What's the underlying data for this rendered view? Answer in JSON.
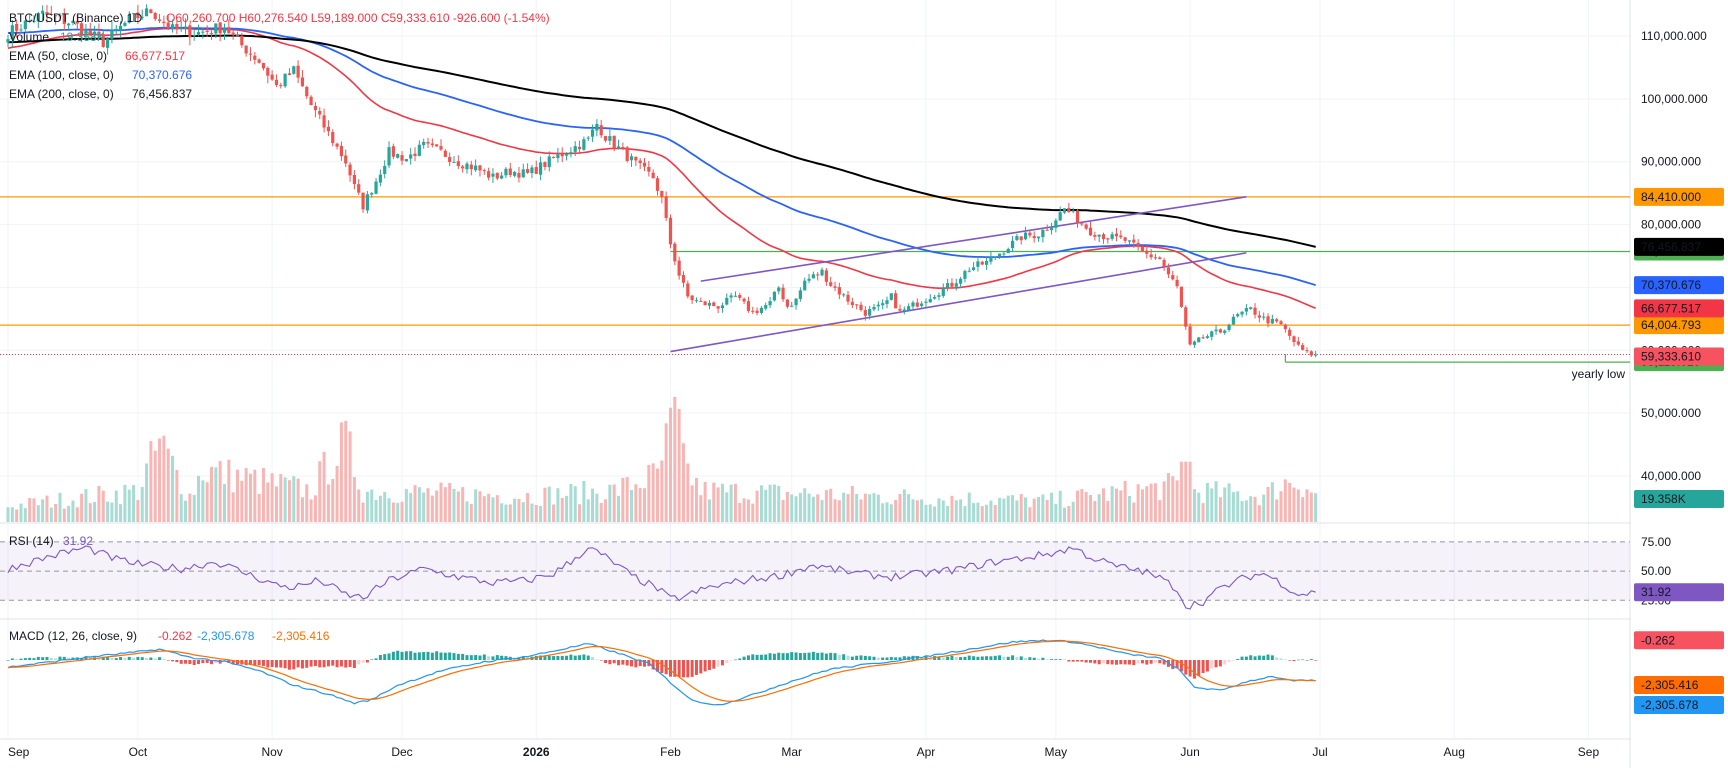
{
  "header": {
    "symbol_line": "BTC/USDT (Binance) 1D",
    "ohlc": "O60,260.700 H60,276.540 L59,189.000 C59,333.610 -926.600 (-1.54%)",
    "volume_label": "Volume",
    "volume_value": "19.358K",
    "ema50_label": "EMA (50, close, 0)",
    "ema50_value": "66,677.517",
    "ema100_label": "EMA (100, close, 0)",
    "ema100_value": "70,370.676",
    "ema200_label": "EMA (200, close, 0)",
    "ema200_value": "76,456.837"
  },
  "rsi_header": {
    "label": "RSI (14)",
    "value": "31.92"
  },
  "macd_header": {
    "label": "MACD (12, 26, close, 9)",
    "hist": "-0.262",
    "macd": "-2,305.678",
    "signal": "-2,305.416"
  },
  "colors": {
    "up": "#26a69a",
    "down": "#ef5350",
    "ema50": "#f23645",
    "ema100": "#2962ff",
    "ema200": "#000000",
    "orange": "#ff9800",
    "green": "#4caf50",
    "purple": "#7e57c2",
    "macd": "#2196f3",
    "signal": "#ff6d00"
  },
  "chart_data": {
    "type": "candlestick",
    "interval": "1D",
    "x_ticks": [
      "Sep",
      "Oct",
      "Nov",
      "Dec",
      "2026",
      "Feb",
      "Mar",
      "Apr",
      "May",
      "Jun",
      "Jul",
      "Aug",
      "Sep"
    ],
    "y_ticks": [
      "110,000.000",
      "100,000.000",
      "90,000.000",
      "80,000.000",
      "70,000.000",
      "60,000.000",
      "50,000.000",
      "40,000.000"
    ],
    "y_tick_values": [
      110000,
      100000,
      90000,
      80000,
      70000,
      60000,
      50000,
      40000
    ],
    "ylim": [
      35000,
      118000
    ],
    "x_month_starts": {
      "Sep": 0,
      "Oct": 30,
      "Nov": 61,
      "Dec": 91,
      "2026": 122,
      "Feb": 153,
      "Mar": 181,
      "Apr": 212,
      "May": 242,
      "Jun": 273,
      "Jul": 303,
      "Aug": 334,
      "Sep2": 365
    },
    "price_keyframes": [
      [
        0,
        110500
      ],
      [
        8,
        113500
      ],
      [
        15,
        112000
      ],
      [
        22,
        109000
      ],
      [
        28,
        112500
      ],
      [
        33,
        114000
      ],
      [
        38,
        111000
      ],
      [
        44,
        110500
      ],
      [
        50,
        111500
      ],
      [
        54,
        108500
      ],
      [
        58,
        106000
      ],
      [
        62,
        102000
      ],
      [
        66,
        104500
      ],
      [
        70,
        99000
      ],
      [
        74,
        94500
      ],
      [
        78,
        90000
      ],
      [
        80,
        86000
      ],
      [
        82,
        83000
      ],
      [
        85,
        87000
      ],
      [
        88,
        91500
      ],
      [
        92,
        90500
      ],
      [
        96,
        92500
      ],
      [
        100,
        91500
      ],
      [
        104,
        90000
      ],
      [
        108,
        89000
      ],
      [
        112,
        87500
      ],
      [
        116,
        88500
      ],
      [
        120,
        88000
      ],
      [
        126,
        90500
      ],
      [
        130,
        92000
      ],
      [
        134,
        93500
      ],
      [
        136,
        96000
      ],
      [
        138,
        94000
      ],
      [
        142,
        91500
      ],
      [
        146,
        89000
      ],
      [
        149,
        87500
      ],
      [
        151,
        84000
      ],
      [
        153,
        77000
      ],
      [
        155,
        72000
      ],
      [
        157,
        68500
      ],
      [
        160,
        67500
      ],
      [
        164,
        67000
      ],
      [
        168,
        68500
      ],
      [
        172,
        66000
      ],
      [
        176,
        67500
      ],
      [
        178,
        70000
      ],
      [
        180,
        67000
      ],
      [
        182,
        68000
      ],
      [
        184,
        71000
      ],
      [
        188,
        72500
      ],
      [
        190,
        70500
      ],
      [
        194,
        68000
      ],
      [
        198,
        66000
      ],
      [
        202,
        67000
      ],
      [
        204,
        68500
      ],
      [
        206,
        66000
      ],
      [
        210,
        67500
      ],
      [
        214,
        69000
      ],
      [
        218,
        70500
      ],
      [
        222,
        73000
      ],
      [
        226,
        74000
      ],
      [
        230,
        76000
      ],
      [
        234,
        78000
      ],
      [
        238,
        78500
      ],
      [
        240,
        79500
      ],
      [
        242,
        81000
      ],
      [
        244,
        82500
      ],
      [
        246,
        81500
      ],
      [
        250,
        79000
      ],
      [
        254,
        78000
      ],
      [
        258,
        77500
      ],
      [
        262,
        75500
      ],
      [
        266,
        74500
      ],
      [
        268,
        72000
      ],
      [
        270,
        70000
      ],
      [
        272,
        63500
      ],
      [
        273,
        60500
      ],
      [
        276,
        62000
      ],
      [
        280,
        63000
      ],
      [
        284,
        65500
      ],
      [
        287,
        66500
      ],
      [
        290,
        65000
      ],
      [
        294,
        64000
      ],
      [
        298,
        60500
      ],
      [
        300,
        59500
      ],
      [
        302,
        59333.61
      ]
    ],
    "volume_keyframes": [
      [
        0,
        6
      ],
      [
        30,
        12
      ],
      [
        35,
        30
      ],
      [
        42,
        10
      ],
      [
        45,
        20
      ],
      [
        70,
        12
      ],
      [
        75,
        25
      ],
      [
        78,
        30
      ],
      [
        82,
        12
      ],
      [
        120,
        10
      ],
      [
        140,
        12
      ],
      [
        150,
        18
      ],
      [
        153,
        35
      ],
      [
        154,
        50
      ],
      [
        156,
        22
      ],
      [
        160,
        12
      ],
      [
        200,
        10
      ],
      [
        240,
        8
      ],
      [
        270,
        14
      ],
      [
        272,
        30
      ],
      [
        274,
        12
      ],
      [
        290,
        10
      ],
      [
        296,
        16
      ],
      [
        300,
        14
      ],
      [
        302,
        10
      ]
    ],
    "volume_label": "19.358K",
    "rsi": {
      "label": "RSI (14)",
      "last": 31.92,
      "levels": [
        75.0,
        50.0,
        25.0
      ],
      "tick_labels": [
        "75.00",
        "50.00",
        "25.00"
      ],
      "current_label": "31.92"
    },
    "rsi_keyframes": [
      [
        0,
        52
      ],
      [
        10,
        63
      ],
      [
        18,
        70
      ],
      [
        25,
        60
      ],
      [
        30,
        56
      ],
      [
        40,
        52
      ],
      [
        48,
        58
      ],
      [
        55,
        48
      ],
      [
        62,
        38
      ],
      [
        66,
        36
      ],
      [
        72,
        42
      ],
      [
        78,
        30
      ],
      [
        82,
        27
      ],
      [
        88,
        42
      ],
      [
        96,
        52
      ],
      [
        104,
        45
      ],
      [
        112,
        40
      ],
      [
        120,
        42
      ],
      [
        126,
        48
      ],
      [
        130,
        58
      ],
      [
        134,
        70
      ],
      [
        138,
        62
      ],
      [
        144,
        46
      ],
      [
        150,
        35
      ],
      [
        153,
        26
      ],
      [
        156,
        28
      ],
      [
        162,
        36
      ],
      [
        170,
        42
      ],
      [
        178,
        46
      ],
      [
        186,
        55
      ],
      [
        190,
        52
      ],
      [
        196,
        48
      ],
      [
        204,
        45
      ],
      [
        212,
        48
      ],
      [
        220,
        52
      ],
      [
        228,
        58
      ],
      [
        236,
        62
      ],
      [
        242,
        66
      ],
      [
        246,
        70
      ],
      [
        250,
        62
      ],
      [
        256,
        54
      ],
      [
        262,
        50
      ],
      [
        266,
        44
      ],
      [
        270,
        35
      ],
      [
        272,
        20
      ],
      [
        276,
        24
      ],
      [
        280,
        35
      ],
      [
        286,
        45
      ],
      [
        290,
        48
      ],
      [
        294,
        40
      ],
      [
        298,
        30
      ],
      [
        302,
        31.92
      ]
    ],
    "macd": {
      "label": "MACD (12, 26, close, 9)",
      "hist_last": -0.262,
      "macd_last": -2305.678,
      "signal_last": -2305.416,
      "hist_label": "-0.262",
      "macd_label": "-2,305.678",
      "signal_label": "-2,305.416"
    },
    "macd_keyframes": [
      [
        0,
        -800
      ],
      [
        10,
        -200
      ],
      [
        20,
        400
      ],
      [
        30,
        900
      ],
      [
        35,
        1200
      ],
      [
        42,
        300
      ],
      [
        50,
        -200
      ],
      [
        58,
        -1200
      ],
      [
        66,
        -2800
      ],
      [
        74,
        -3800
      ],
      [
        80,
        -4800
      ],
      [
        84,
        -4400
      ],
      [
        90,
        -2800
      ],
      [
        100,
        -1200
      ],
      [
        110,
        -200
      ],
      [
        120,
        400
      ],
      [
        128,
        1200
      ],
      [
        134,
        1800
      ],
      [
        140,
        900
      ],
      [
        148,
        -400
      ],
      [
        153,
        -2500
      ],
      [
        158,
        -4500
      ],
      [
        164,
        -5000
      ],
      [
        170,
        -4200
      ],
      [
        180,
        -2500
      ],
      [
        190,
        -1000
      ],
      [
        200,
        -400
      ],
      [
        212,
        400
      ],
      [
        222,
        1200
      ],
      [
        232,
        2000
      ],
      [
        240,
        2200
      ],
      [
        246,
        2000
      ],
      [
        252,
        1400
      ],
      [
        258,
        700
      ],
      [
        266,
        200
      ],
      [
        270,
        -900
      ],
      [
        274,
        -3000
      ],
      [
        280,
        -3400
      ],
      [
        286,
        -2400
      ],
      [
        292,
        -1800
      ],
      [
        296,
        -2300
      ],
      [
        302,
        -2305.678
      ]
    ],
    "levels": [
      {
        "name": "resistance",
        "value": 84410.0,
        "label": "84,410.000",
        "color": "#ff9800"
      },
      {
        "name": "support",
        "value": 64004.793,
        "label": "64,004.793",
        "color": "#ff9800"
      },
      {
        "name": "green-level",
        "value": 75719.9,
        "label": "75,719.900",
        "color": "#4caf50"
      },
      {
        "name": "yearly-low",
        "value": 58115.01,
        "label": "58,115.010",
        "color": "#4caf50",
        "text": "yearly low"
      }
    ],
    "price_labels": [
      {
        "name": "ema200",
        "value": 76456.837,
        "label": "76,456.837",
        "bg": "#000000"
      },
      {
        "name": "ema100",
        "value": 70370.676,
        "label": "70,370.676",
        "bg": "#2962ff"
      },
      {
        "name": "ema50",
        "value": 66677.517,
        "label": "66,677.517",
        "bg": "#f23645"
      },
      {
        "name": "last-price",
        "value": 59333.61,
        "label": "59,333.610",
        "bg": "#f7525f"
      }
    ],
    "channel": {
      "upper": [
        [
          160,
          71000
        ],
        [
          286,
          84410
        ]
      ],
      "lower": [
        [
          153,
          59800
        ],
        [
          286,
          75500
        ]
      ]
    },
    "ema_ends": {
      "ema50": 66677.517,
      "ema100": 70370.676,
      "ema200": 76456.837
    }
  }
}
